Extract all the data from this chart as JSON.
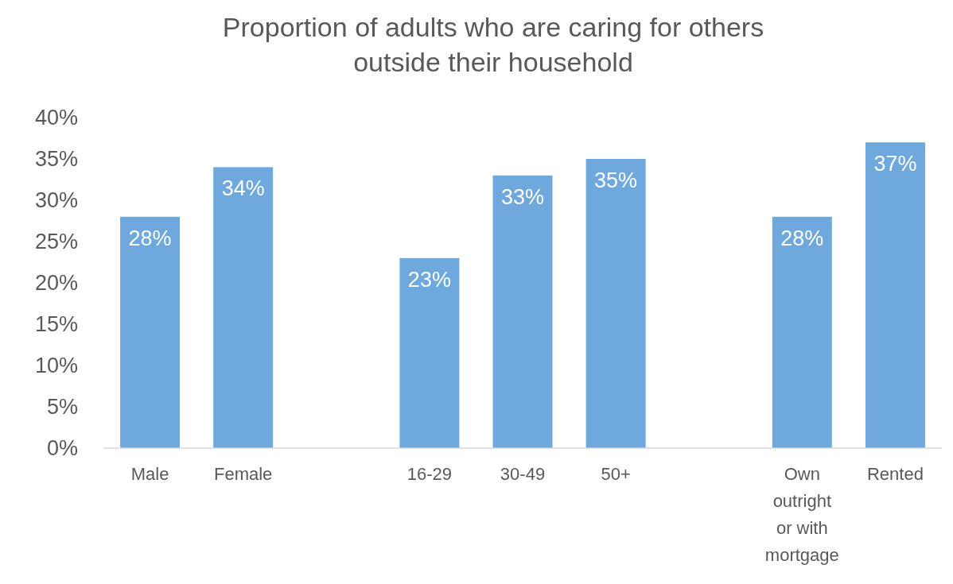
{
  "chart_data": {
    "type": "bar",
    "title": "Proportion of adults who are caring for others outside their household",
    "categories": [
      "Male",
      "Female",
      null,
      "16-29",
      "30-49",
      "50+",
      null,
      "Own outright or with mortgage",
      "Rented"
    ],
    "values": [
      28,
      34,
      null,
      23,
      33,
      35,
      null,
      28,
      37
    ],
    "value_labels": [
      "28%",
      "34%",
      null,
      "23%",
      "33%",
      "35%",
      null,
      "28%",
      "37%"
    ],
    "color": "#6fa8dc",
    "ylim": [
      0,
      40
    ],
    "yticks": [
      {
        "value": 0,
        "label": "0%"
      },
      {
        "value": 5,
        "label": "5%"
      },
      {
        "value": 10,
        "label": "10%"
      },
      {
        "value": 15,
        "label": "15%"
      },
      {
        "value": 20,
        "label": "20%"
      },
      {
        "value": 25,
        "label": "25%"
      },
      {
        "value": 30,
        "label": "30%"
      },
      {
        "value": 35,
        "label": "35%"
      },
      {
        "value": 40,
        "label": "40%"
      }
    ],
    "grid": false
  }
}
